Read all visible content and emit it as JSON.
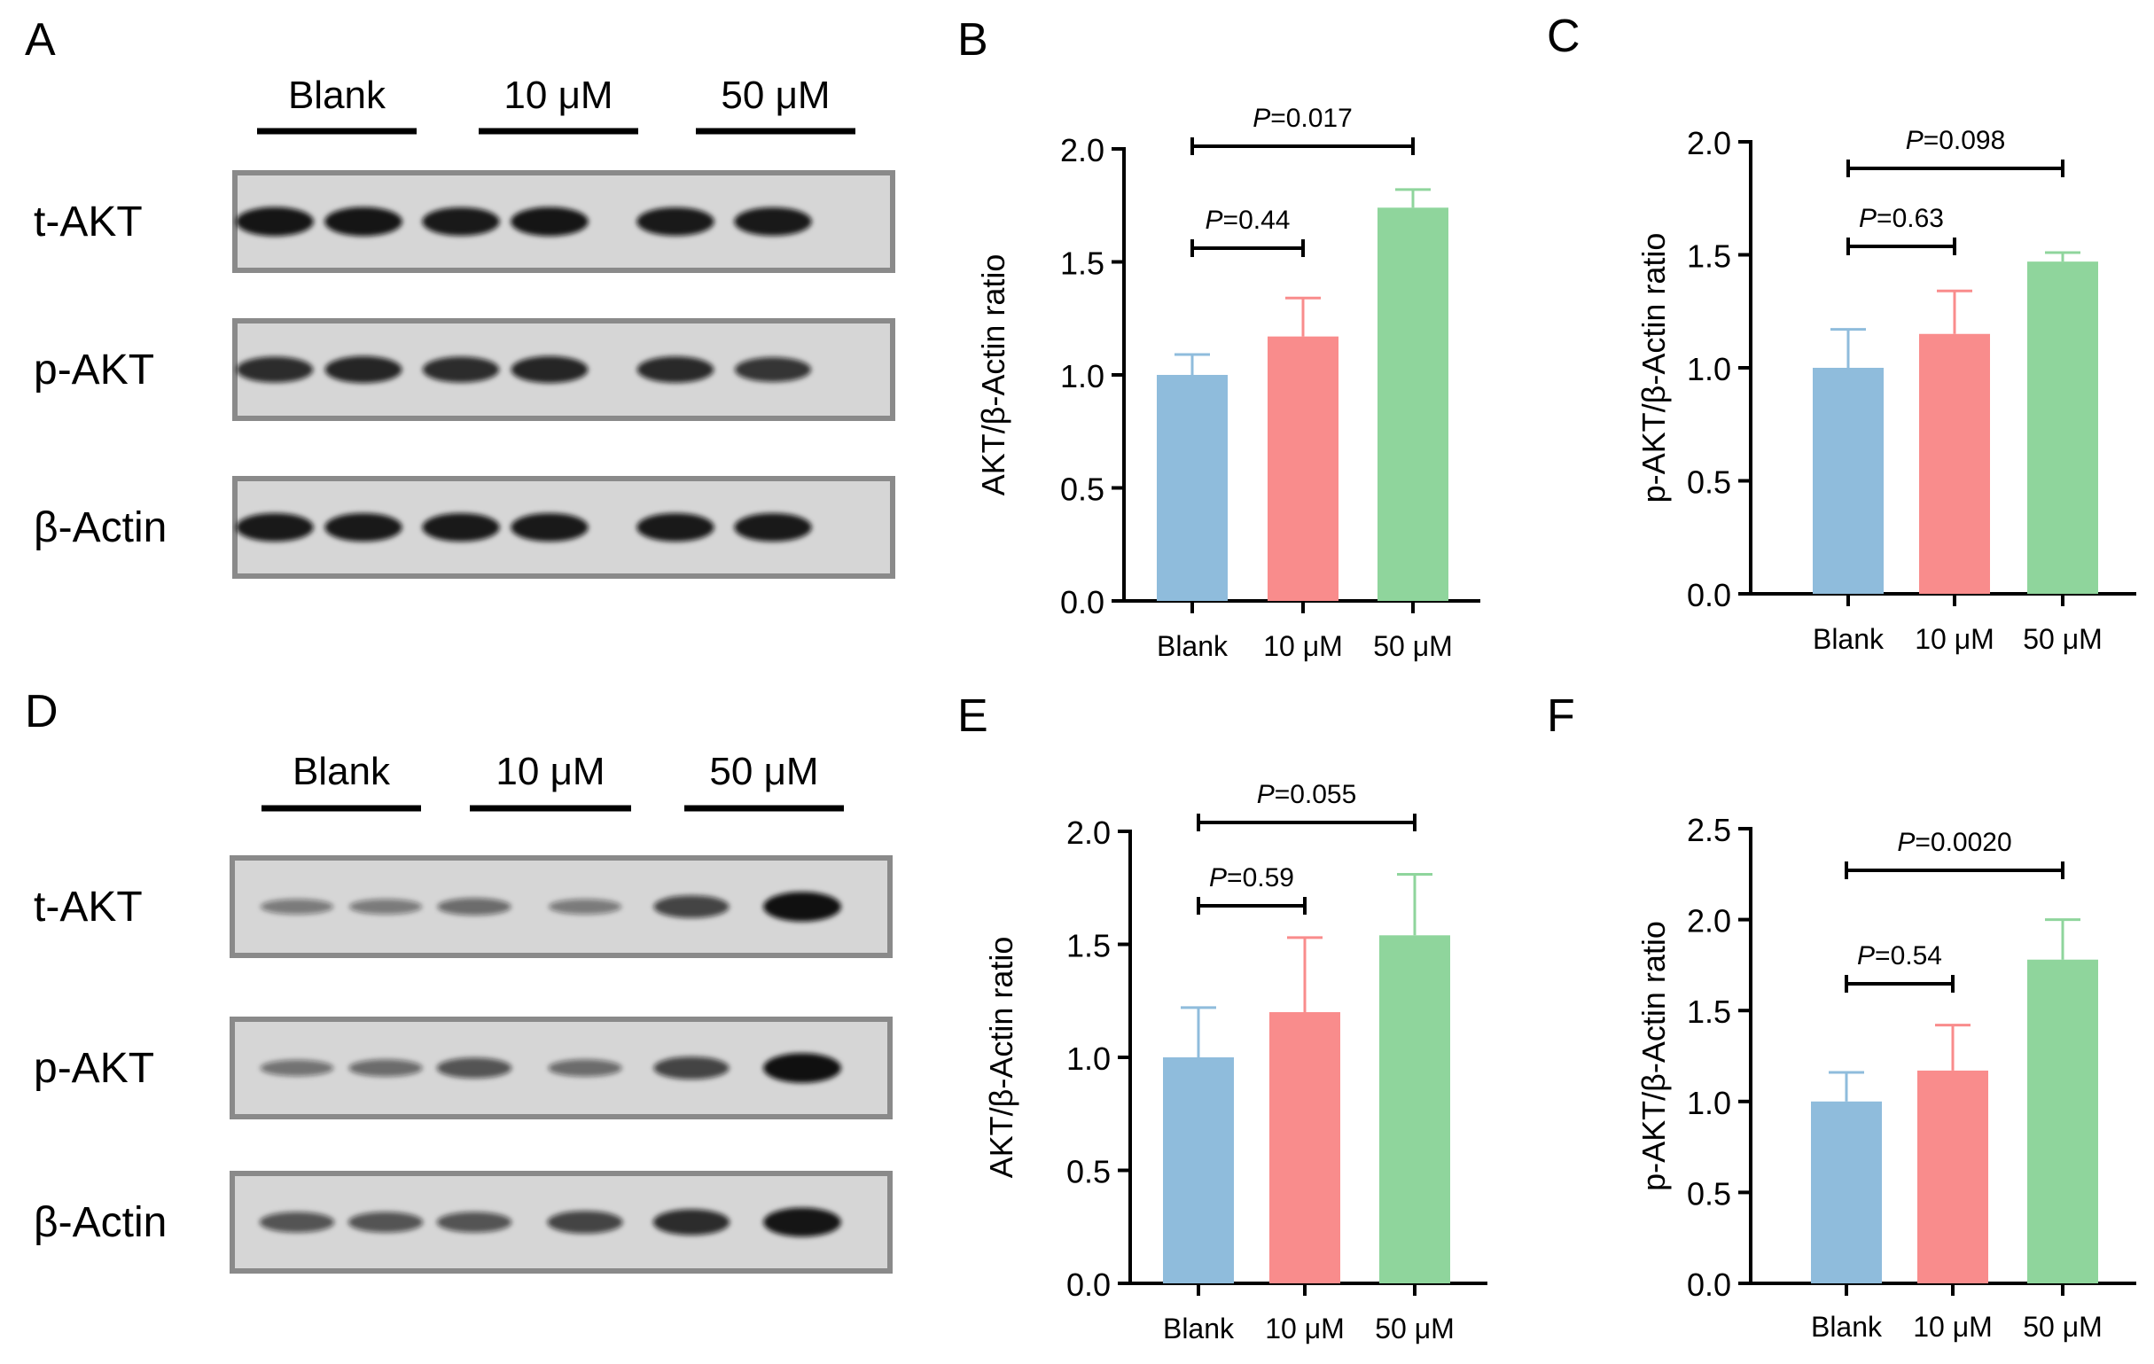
{
  "colors": {
    "blank": "#8fbcdc",
    "low": "#f98c8c",
    "high": "#8fd59c",
    "band": "#101010",
    "blot_bg": "#d6d6d6",
    "blot_border": "#8a8a8a"
  },
  "blots": [
    {
      "panel_letter": "A",
      "group_labels": [
        "Blank",
        "10 μM",
        "50 μM"
      ],
      "rows": [
        {
          "label": "t-AKT",
          "intensities": [
            0.95,
            0.95,
            0.92,
            0.95,
            0.92,
            0.92
          ]
        },
        {
          "label": "p-AKT",
          "intensities": [
            0.8,
            0.85,
            0.8,
            0.85,
            0.82,
            0.75
          ]
        },
        {
          "label": "β-Actin",
          "intensities": [
            0.92,
            0.92,
            0.92,
            0.92,
            0.92,
            0.92
          ]
        }
      ]
    },
    {
      "panel_letter": "D",
      "group_labels": [
        "Blank",
        "10 μM",
        "50 μM"
      ],
      "rows": [
        {
          "label": "t-AKT",
          "intensities": [
            0.3,
            0.3,
            0.4,
            0.3,
            0.65,
            0.98
          ]
        },
        {
          "label": "p-AKT",
          "intensities": [
            0.35,
            0.4,
            0.55,
            0.4,
            0.65,
            0.98
          ]
        },
        {
          "label": "β-Actin",
          "intensities": [
            0.55,
            0.55,
            0.55,
            0.65,
            0.8,
            0.95
          ]
        }
      ]
    }
  ],
  "chart_data": [
    {
      "panel_letter": "B",
      "type": "bar",
      "categories": [
        "Blank",
        "10 μM",
        "50 μM"
      ],
      "values": [
        1.0,
        1.17,
        1.74
      ],
      "errors": [
        0.09,
        0.17,
        0.08
      ],
      "ylabel": "AKT/β-Actin ratio",
      "ylim": [
        0,
        2.0
      ],
      "yticks": [
        "0.0",
        "0.5",
        "1.0",
        "1.5",
        "2.0"
      ],
      "comparisons": [
        {
          "p": "=0.44",
          "from": 0,
          "to": 1
        },
        {
          "p": "=0.017",
          "from": 0,
          "to": 2
        }
      ]
    },
    {
      "panel_letter": "C",
      "type": "bar",
      "categories": [
        "Blank",
        "10 μM",
        "50 μM"
      ],
      "values": [
        1.0,
        1.15,
        1.47
      ],
      "errors": [
        0.17,
        0.19,
        0.04
      ],
      "ylabel": "p-AKT/β-Actin ratio",
      "ylim": [
        0,
        2.0
      ],
      "yticks": [
        "0.0",
        "0.5",
        "1.0",
        "1.5",
        "2.0"
      ],
      "comparisons": [
        {
          "p": "=0.63",
          "from": 0,
          "to": 1
        },
        {
          "p": "=0.098",
          "from": 0,
          "to": 2
        }
      ]
    },
    {
      "panel_letter": "E",
      "type": "bar",
      "categories": [
        "Blank",
        "10 μM",
        "50 μM"
      ],
      "values": [
        1.0,
        1.2,
        1.54
      ],
      "errors": [
        0.22,
        0.33,
        0.27
      ],
      "ylabel": "AKT/β-Actin ratio",
      "ylim": [
        0,
        2.0
      ],
      "yticks": [
        "0.0",
        "0.5",
        "1.0",
        "1.5",
        "2.0"
      ],
      "comparisons": [
        {
          "p": "=0.59",
          "from": 0,
          "to": 1
        },
        {
          "p": "=0.055",
          "from": 0,
          "to": 2
        }
      ]
    },
    {
      "panel_letter": "F",
      "type": "bar",
      "categories": [
        "Blank",
        "10 μM",
        "50 μM"
      ],
      "values": [
        1.0,
        1.17,
        1.78
      ],
      "errors": [
        0.16,
        0.25,
        0.22
      ],
      "ylabel": "p-AKT/β-Actin ratio",
      "ylim": [
        0,
        2.5
      ],
      "yticks": [
        "0.0",
        "0.5",
        "1.0",
        "1.5",
        "2.0",
        "2.5"
      ],
      "comparisons": [
        {
          "p": "=0.54",
          "from": 0,
          "to": 1
        },
        {
          "p": "=0.0020",
          "from": 0,
          "to": 2
        }
      ]
    }
  ]
}
